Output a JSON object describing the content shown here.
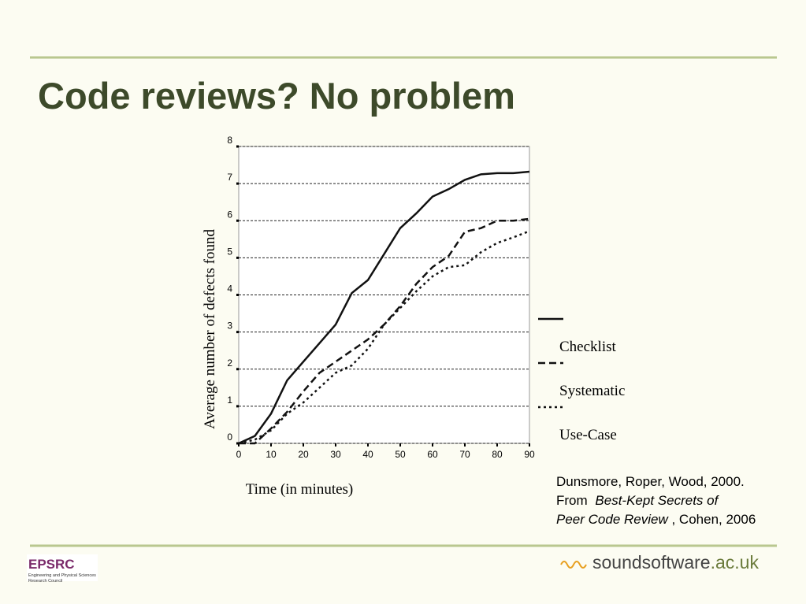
{
  "slide": {
    "title": "Code reviews? No problem",
    "citation": {
      "line1": "Dunsmore, Roper, Wood, 2000.",
      "line2_plain": "From",
      "line2_italic": "Best-Kept Secrets of",
      "line3_italic": "Peer Code Review",
      "line3_plain": ", Cohen, 2006"
    },
    "logo_left": {
      "name": "EPSRC",
      "line1": "Engineering and Physical Sciences",
      "line2": "Research Council"
    },
    "logo_right": {
      "main": "soundsoftware",
      "suffix": ".ac.uk"
    }
  },
  "chart_data": {
    "type": "line",
    "x_label": "Time (in minutes)",
    "y_label": "Average number of defects found",
    "x": [
      0,
      5,
      10,
      15,
      20,
      25,
      30,
      35,
      40,
      45,
      50,
      55,
      60,
      65,
      70,
      75,
      80,
      85,
      90
    ],
    "series": [
      {
        "name": "Checklist",
        "color": "#111111",
        "dash": "solid",
        "values": [
          0,
          0.2,
          0.8,
          1.7,
          2.2,
          2.7,
          3.2,
          4.05,
          4.4,
          5.1,
          5.8,
          6.2,
          6.65,
          6.85,
          7.1,
          7.25,
          7.28,
          7.28,
          7.32
        ]
      },
      {
        "name": "Systematic",
        "color": "#111111",
        "dash": "dashed",
        "values": [
          0,
          0,
          0.4,
          0.85,
          1.4,
          1.9,
          2.2,
          2.5,
          2.8,
          3.2,
          3.7,
          4.3,
          4.75,
          5.05,
          5.7,
          5.8,
          6.0,
          6.0,
          6.05
        ]
      },
      {
        "name": "Use-Case",
        "color": "#111111",
        "dash": "dotted",
        "values": [
          0,
          0.1,
          0.35,
          0.8,
          1.1,
          1.5,
          1.9,
          2.1,
          2.55,
          3.2,
          3.65,
          4.1,
          4.5,
          4.75,
          4.8,
          5.15,
          5.4,
          5.55,
          5.72
        ]
      }
    ],
    "xlim": [
      0,
      90
    ],
    "xticks": [
      0,
      10,
      20,
      30,
      40,
      50,
      60,
      70,
      80,
      90
    ],
    "ylim": [
      0,
      8
    ],
    "yticks": [
      0,
      1,
      2,
      3,
      4,
      5,
      6,
      7,
      8
    ],
    "grid": true,
    "legend": "right"
  }
}
